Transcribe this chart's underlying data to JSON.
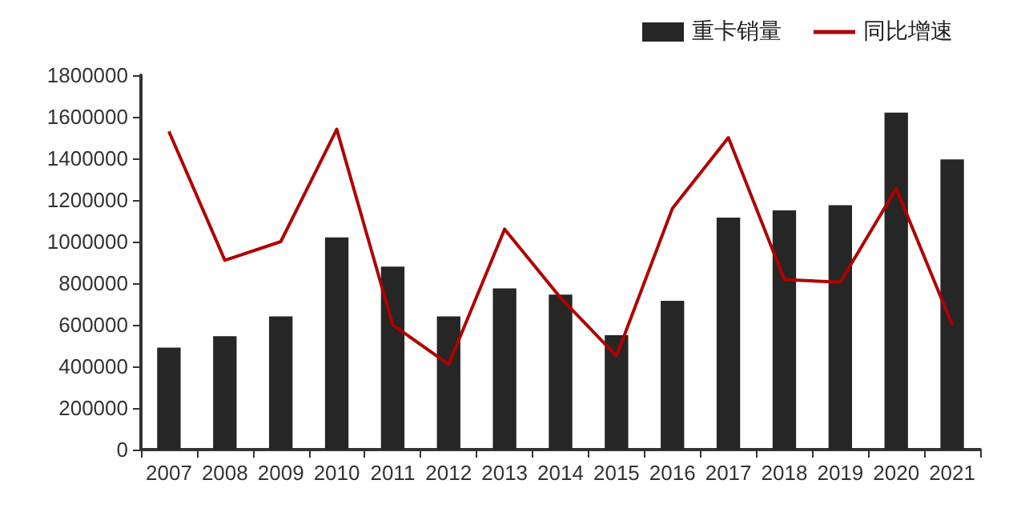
{
  "chart_data": {
    "type": "bar",
    "categories": [
      "2007",
      "2008",
      "2009",
      "2010",
      "2011",
      "2012",
      "2013",
      "2014",
      "2015",
      "2016",
      "2017",
      "2018",
      "2019",
      "2020",
      "2021"
    ],
    "series": [
      {
        "name": "重卡销量",
        "color": "#262626",
        "values": [
          490000,
          545000,
          640000,
          1020000,
          880000,
          640000,
          775000,
          745000,
          550000,
          715000,
          1115000,
          1150000,
          1175000,
          1620000,
          1395000
        ]
      },
      {
        "name": "同比增速",
        "type": "line",
        "color": "#b00000",
        "values": [
          1530000,
          910000,
          1000000,
          1540000,
          600000,
          410000,
          1060000,
          730000,
          450000,
          1160000,
          1500000,
          817000,
          805000,
          1255000,
          600000
        ]
      }
    ],
    "ylim": [
      0,
      1800000
    ],
    "yticks": [
      0,
      200000,
      400000,
      600000,
      800000,
      1000000,
      1200000,
      1400000,
      1600000,
      1800000
    ],
    "grid": false,
    "legend": "top right",
    "marker": "none"
  }
}
